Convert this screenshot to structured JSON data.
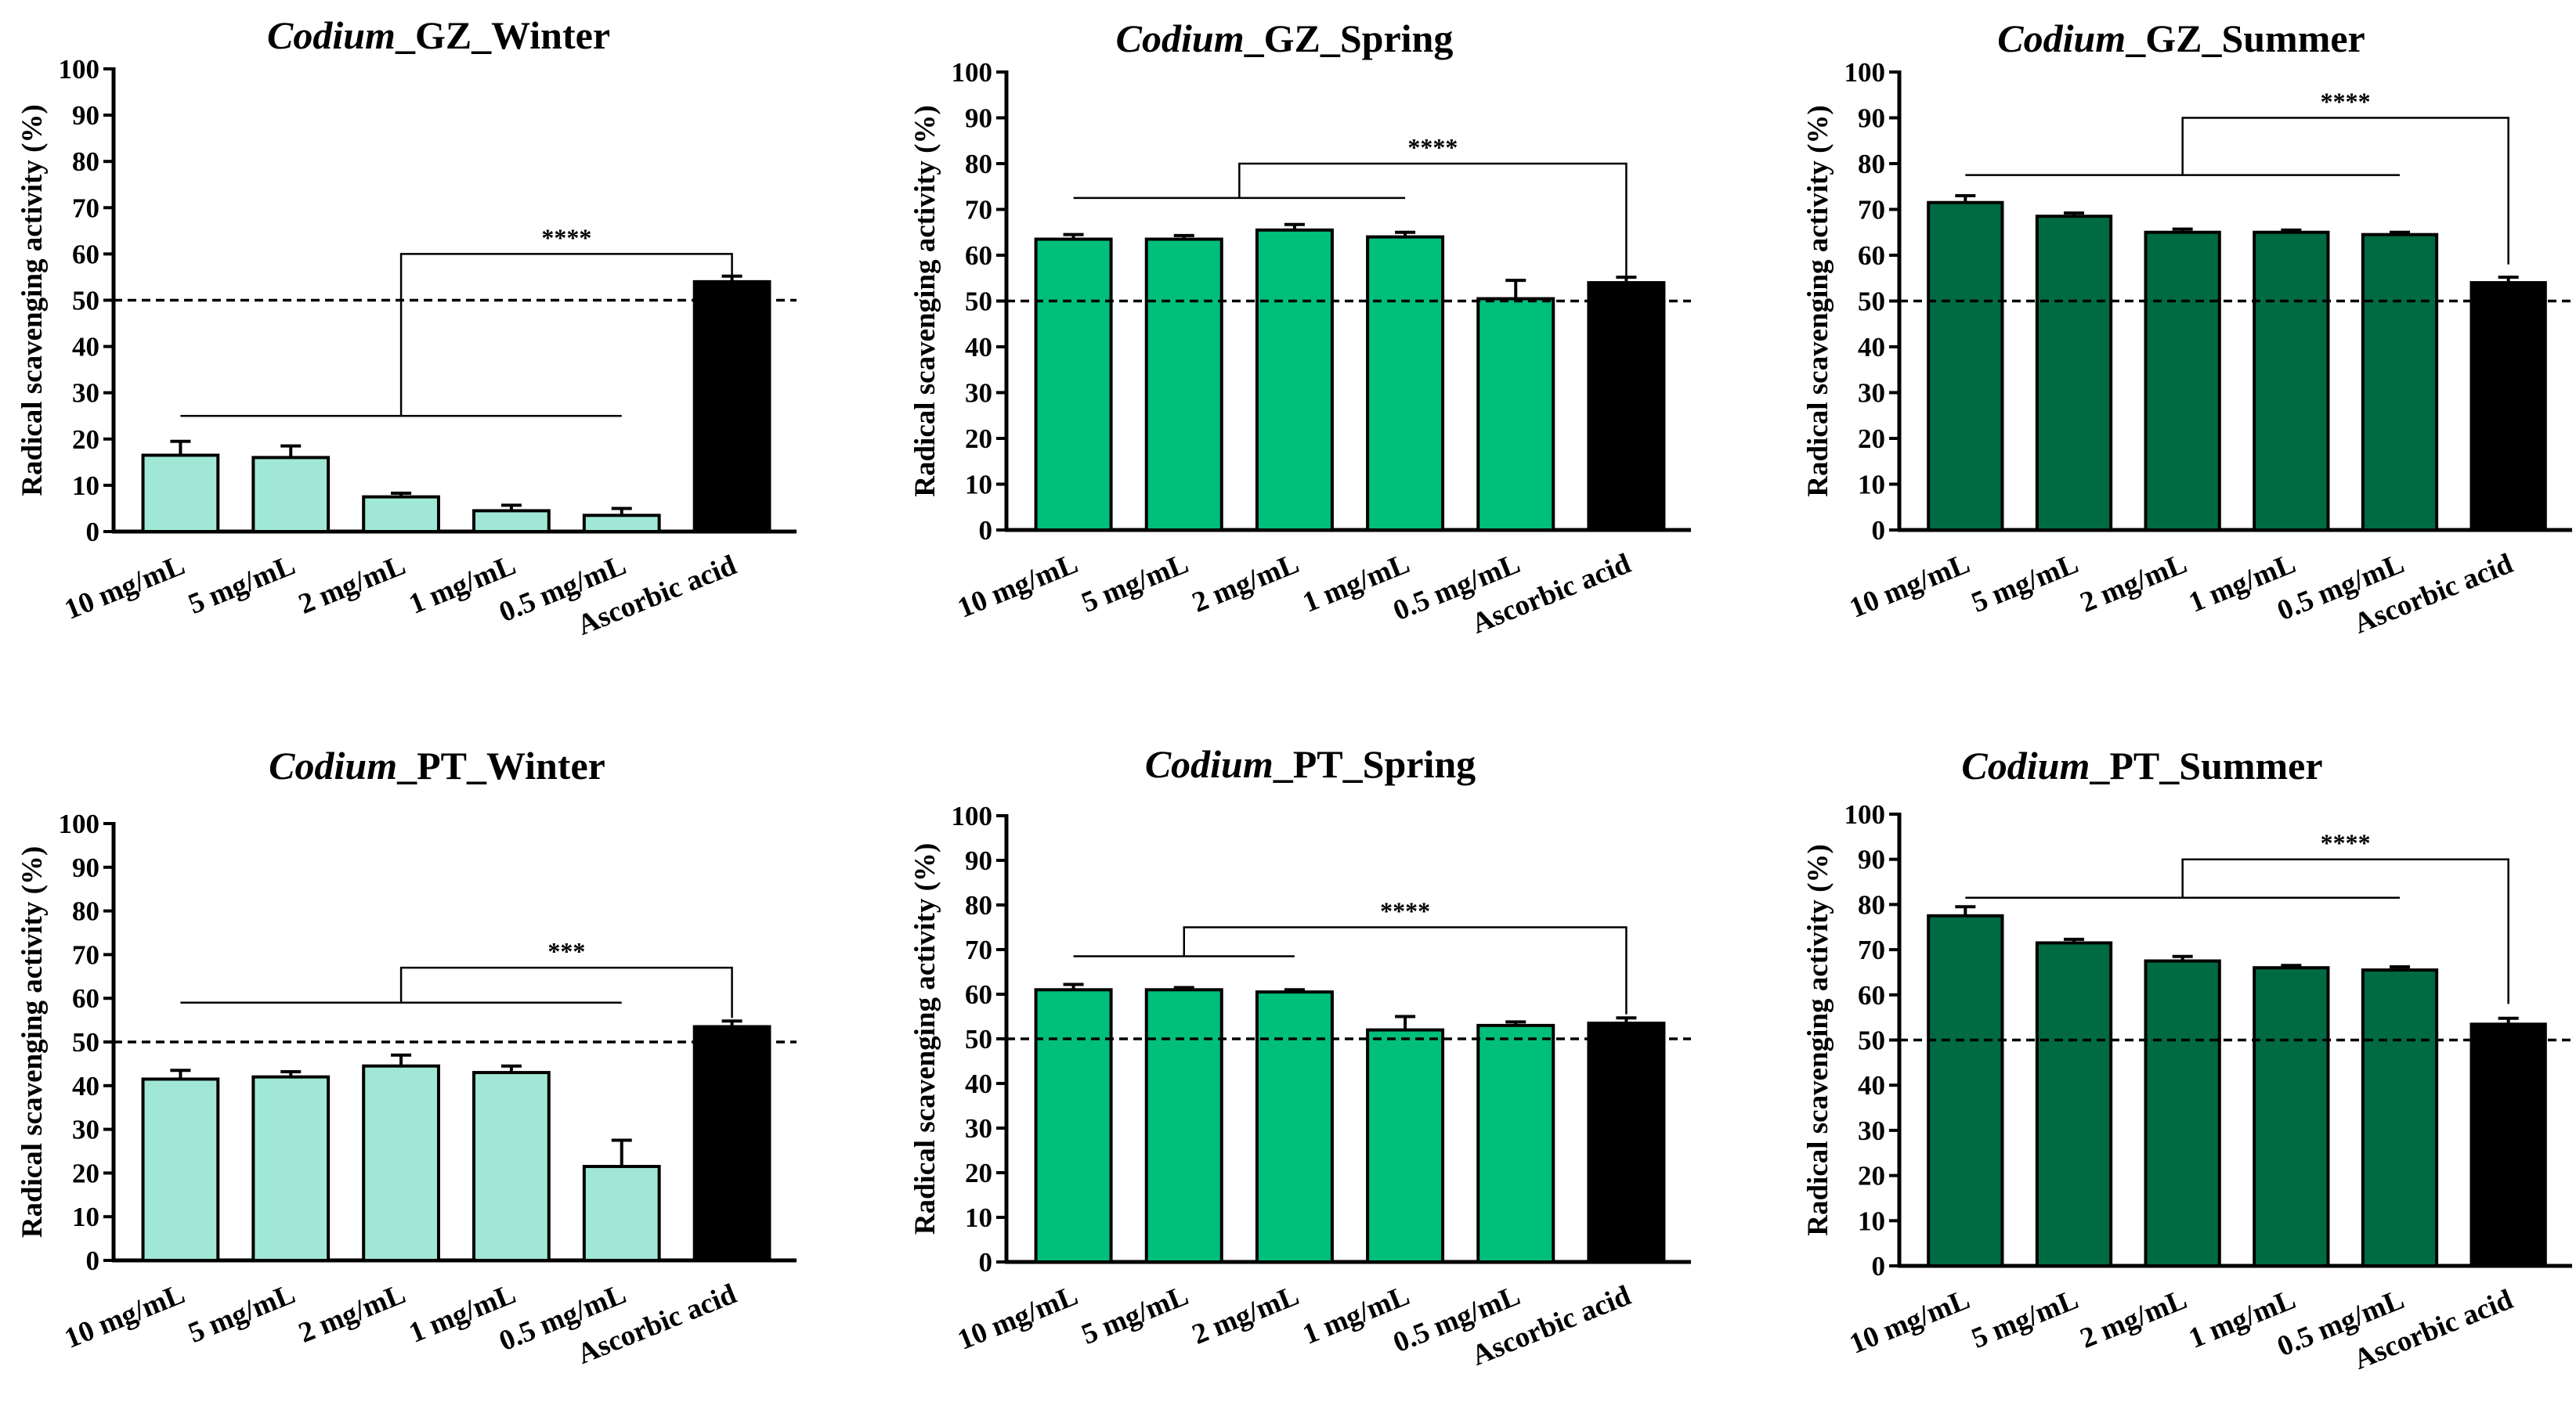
{
  "chart_data": [
    {
      "type": "bar",
      "title_italic": "Codium",
      "title_rest": "_GZ_Winter",
      "ylabel": "Radical scavenging activity (%)",
      "categories": [
        "10 mg/mL",
        "5 mg/mL",
        "2 mg/mL",
        "1 mg/mL",
        "0.5 mg/mL",
        "Ascorbic acid"
      ],
      "values": [
        16.5,
        16,
        7.5,
        4.5,
        3.5,
        54
      ],
      "errors": [
        3,
        2.5,
        0.8,
        1.2,
        1.5,
        1.2
      ],
      "yticks": [
        "0",
        "10",
        "20",
        "30",
        "40",
        "50",
        "60",
        "70",
        "80",
        "90",
        "100"
      ],
      "ylim": [
        0,
        100
      ],
      "reference_line": 50,
      "bar_color": "#a0e8d5",
      "control_color": "#000000",
      "significance": {
        "label": "****",
        "group_from": 0,
        "group_to": 4,
        "group_y": 25,
        "bracket_y": 60,
        "control_top": 55.5
      }
    },
    {
      "type": "bar",
      "title_italic": "Codium",
      "title_rest": "_GZ_Spring",
      "ylabel": "Radical scavenging activity (%)",
      "categories": [
        "10 mg/mL",
        "5 mg/mL",
        "2 mg/mL",
        "1 mg/mL",
        "0.5 mg/mL",
        "Ascorbic acid"
      ],
      "values": [
        63.5,
        63.5,
        65.5,
        64,
        50.5,
        54
      ],
      "errors": [
        1,
        0.8,
        1.2,
        1,
        4,
        1.2
      ],
      "yticks": [
        "0",
        "10",
        "20",
        "30",
        "40",
        "50",
        "60",
        "70",
        "80",
        "90",
        "100"
      ],
      "ylim": [
        0,
        100
      ],
      "reference_line": 50,
      "bar_color": "#00bf7a",
      "control_color": "#000000",
      "significance": {
        "label": "****",
        "group_from": 0,
        "group_to": 3,
        "group_y": 72.5,
        "bracket_y": 80,
        "control_top": 55.5
      }
    },
    {
      "type": "bar",
      "title_italic": "Codium",
      "title_rest": "_GZ_Summer",
      "ylabel": "Radical scavenging activity (%)",
      "categories": [
        "10 mg/mL",
        "5 mg/mL",
        "2 mg/mL",
        "1 mg/mL",
        "0.5 mg/mL",
        "Ascorbic acid"
      ],
      "values": [
        71.5,
        68.5,
        65,
        65,
        64.5,
        54
      ],
      "errors": [
        1.5,
        0.7,
        0.7,
        0.5,
        0.5,
        1.2
      ],
      "yticks": [
        "0",
        "10",
        "20",
        "30",
        "40",
        "50",
        "60",
        "70",
        "80",
        "90",
        "100"
      ],
      "ylim": [
        0,
        100
      ],
      "reference_line": 50,
      "bar_color": "#006b42",
      "control_color": "#000000",
      "significance": {
        "label": "****",
        "group_from": 0,
        "group_to": 4,
        "group_y": 77.5,
        "bracket_y": 90,
        "control_top": 58
      }
    },
    {
      "type": "bar",
      "title_italic": "Codium",
      "title_rest": "_PT_Winter",
      "ylabel": "Radical scavenging activity (%)",
      "categories": [
        "10 mg/mL",
        "5 mg/mL",
        "2 mg/mL",
        "1 mg/mL",
        "0.5 mg/mL",
        "Ascorbic acid"
      ],
      "values": [
        41.5,
        42,
        44.5,
        43,
        21.5,
        53.5
      ],
      "errors": [
        2,
        1.2,
        2.5,
        1.5,
        6,
        1.3
      ],
      "yticks": [
        "0",
        "10",
        "20",
        "30",
        "40",
        "50",
        "60",
        "70",
        "80",
        "90",
        "100"
      ],
      "ylim": [
        0,
        100
      ],
      "reference_line": 50,
      "bar_color": "#a0e8d5",
      "control_color": "#000000",
      "significance": {
        "label": "***",
        "group_from": 0,
        "group_to": 4,
        "group_y": 59,
        "bracket_y": 67,
        "control_top": 55.5
      }
    },
    {
      "type": "bar",
      "title_italic": "Codium",
      "title_rest": "_PT_Spring",
      "ylabel": "Radical scavenging activity (%)",
      "categories": [
        "10 mg/mL",
        "5 mg/mL",
        "2 mg/mL",
        "1 mg/mL",
        "0.5 mg/mL",
        "Ascorbic acid"
      ],
      "values": [
        61,
        61,
        60.5,
        52,
        53,
        53.5
      ],
      "errors": [
        1.2,
        0.5,
        0.5,
        3,
        0.8,
        1.2
      ],
      "yticks": [
        "0",
        "10",
        "20",
        "30",
        "40",
        "50",
        "60",
        "70",
        "80",
        "90",
        "100"
      ],
      "ylim": [
        0,
        100
      ],
      "reference_line": 50,
      "bar_color": "#00bf7a",
      "control_color": "#000000",
      "significance": {
        "label": "****",
        "group_from": 0,
        "group_to": 2,
        "group_y": 68.5,
        "bracket_y": 75,
        "control_top": 55.5
      }
    },
    {
      "type": "bar",
      "title_italic": "Codium",
      "title_rest": "_PT_Summer",
      "ylabel": "Radical scavenging activity (%)",
      "categories": [
        "10 mg/mL",
        "5 mg/mL",
        "2 mg/mL",
        "1 mg/mL",
        "0.5 mg/mL",
        "Ascorbic acid"
      ],
      "values": [
        77.5,
        71.5,
        67.5,
        66,
        65.5,
        53.5
      ],
      "errors": [
        2,
        0.8,
        1,
        0.5,
        0.7,
        1.3
      ],
      "yticks": [
        "0",
        "10",
        "20",
        "30",
        "40",
        "50",
        "60",
        "70",
        "80",
        "90",
        "100"
      ],
      "ylim": [
        0,
        100
      ],
      "reference_line": 50,
      "bar_color": "#006b42",
      "control_color": "#000000",
      "significance": {
        "label": "****",
        "group_from": 0,
        "group_to": 4,
        "group_y": 81.5,
        "bracket_y": 90,
        "control_top": 58
      }
    }
  ]
}
